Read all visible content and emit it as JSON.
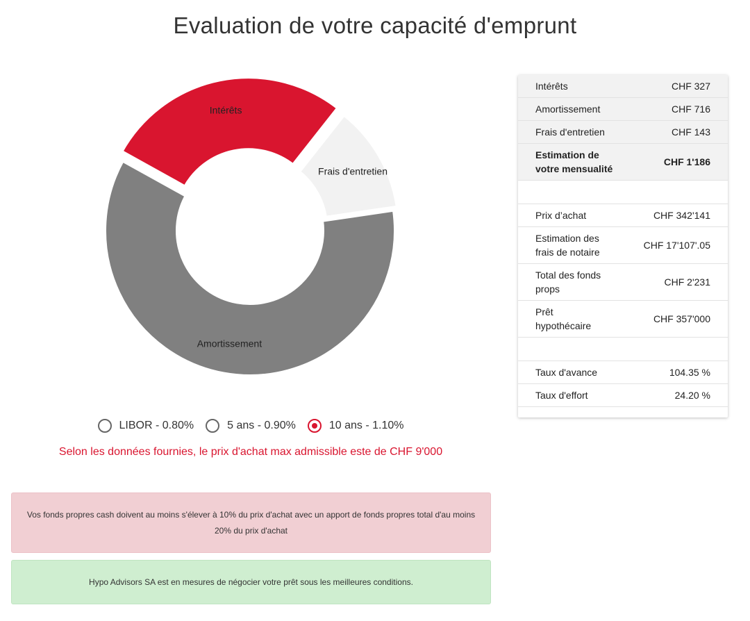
{
  "page": {
    "title": "Evaluation de votre capacité d'emprunt"
  },
  "chart_data": {
    "type": "pie",
    "style": "donut",
    "categories": [
      "Intérêts",
      "Frais d'entretien",
      "Amortissement"
    ],
    "values": [
      327,
      143,
      716
    ],
    "colors": [
      "#d9152f",
      "#f2f2f2",
      "#808080"
    ]
  },
  "rates": {
    "options": [
      {
        "label": "LIBOR - 0.80%",
        "selected": false
      },
      {
        "label": "5 ans - 0.90%",
        "selected": false
      },
      {
        "label": "10 ans - 1.10%",
        "selected": true
      }
    ]
  },
  "notice": {
    "max_price": "Selon les données fournies, le prix d'achat max admissible este de CHF 9'000"
  },
  "alerts": {
    "danger": "Vos fonds propres cash doivent au moins s'élever à 10% du prix d'achat avec un apport de fonds propres total d'au moins 20% du prix d'achat",
    "success": "Hypo Advisors SA est en mesures de négocier votre prêt sous les meilleures conditions."
  },
  "summary": {
    "interets": {
      "label": "Intérêts",
      "value": "CHF 327"
    },
    "amortissement": {
      "label": "Amortissement",
      "value": "CHF 716"
    },
    "frais": {
      "label": "Frais d'entretien",
      "value": "CHF 143"
    },
    "mensualite": {
      "label_1": "Estimation de",
      "label_2": "votre mensualité",
      "value": "CHF 1'186"
    },
    "prix_achat": {
      "label": "Prix d’achat",
      "value": "CHF 342'141"
    },
    "notaire": {
      "label_1": "Estimation des",
      "label_2": "frais de notaire",
      "value": "CHF 17'107'.05"
    },
    "fonds_propres": {
      "label_1": "Total des fonds",
      "label_2": "props",
      "value": "CHF 2'231"
    },
    "pret": {
      "label_1": "Prêt",
      "label_2": "hypothécaire",
      "value": "CHF 357'000"
    },
    "taux_avance": {
      "label": "Taux d'avance",
      "value": "104.35 %"
    },
    "taux_effort": {
      "label": "Taux d'effort",
      "value": "24.20 %"
    }
  }
}
